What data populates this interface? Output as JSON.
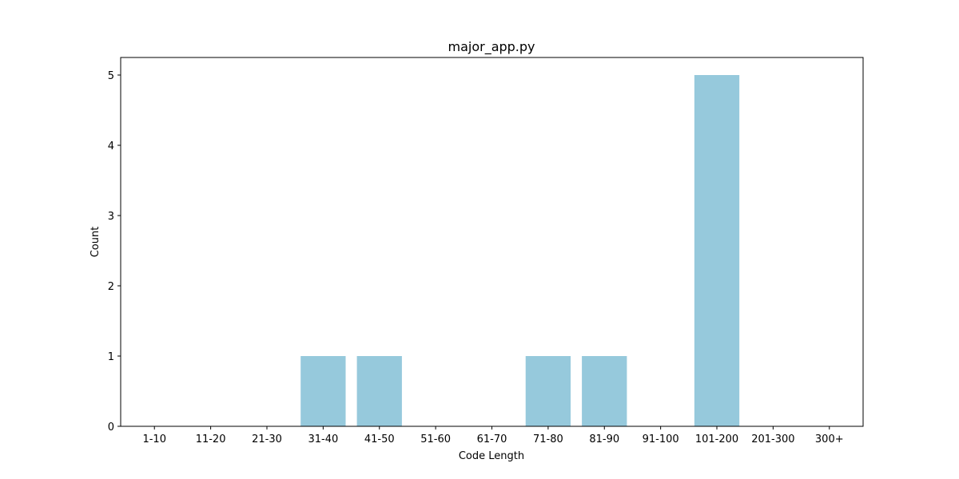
{
  "chart_data": {
    "type": "bar",
    "title": "major_app.py",
    "xlabel": "Code Length",
    "ylabel": "Count",
    "categories": [
      "1-10",
      "11-20",
      "21-30",
      "31-40",
      "41-50",
      "51-60",
      "61-70",
      "71-80",
      "81-90",
      "91-100",
      "101-200",
      "201-300",
      "300+"
    ],
    "values": [
      0,
      0,
      0,
      1,
      1,
      0,
      0,
      1,
      1,
      0,
      5,
      0,
      0
    ],
    "ylim": [
      0,
      5.25
    ],
    "yticks": [
      "0",
      "1",
      "2",
      "3",
      "4",
      "5"
    ],
    "bar_color": "#96c9dc",
    "grid": false,
    "legend": "none"
  }
}
